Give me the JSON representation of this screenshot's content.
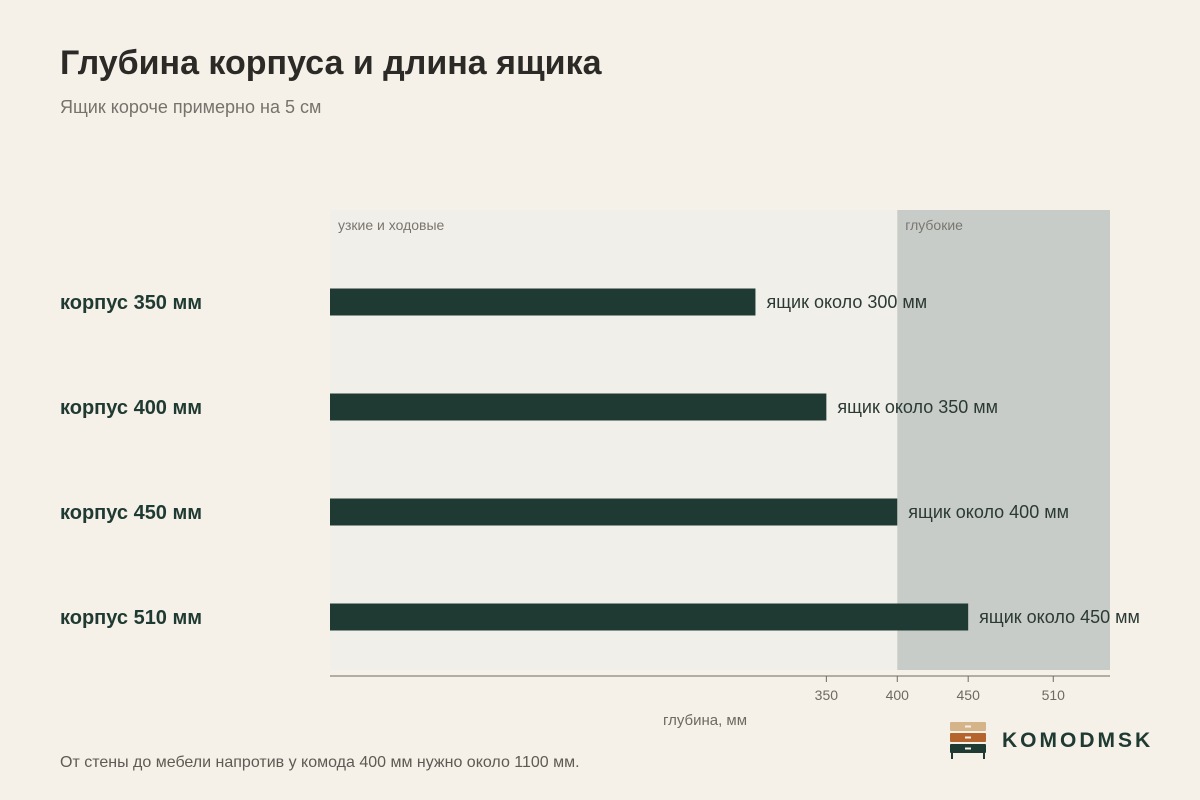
{
  "header": {
    "title": "Глубина корпуса и длина ящика",
    "subtitle": "Ящик короче примерно на 5 см"
  },
  "chart_data": {
    "type": "bar",
    "orientation": "horizontal",
    "categories": [
      "корпус 350 мм",
      "корпус 400 мм",
      "корпус 450 мм",
      "корпус 510 мм"
    ],
    "values": [
      300,
      350,
      400,
      450
    ],
    "data_labels": [
      "ящик около 300 мм",
      "ящик около 350 мм",
      "ящик около 400 мм",
      "ящик около 450 мм"
    ],
    "xlabel": "глубина, мм",
    "xticks": [
      350,
      400,
      450,
      510
    ],
    "xlim": [
      0,
      550
    ],
    "zones": [
      {
        "label": "узкие и ходовые",
        "from": 0,
        "to": 400
      },
      {
        "label": "глубокие",
        "from": 400,
        "to": 550
      }
    ],
    "colors": {
      "bar": "#1f3a32",
      "zone_narrow": "#f1efea",
      "zone_deep": "#c8ccc8"
    },
    "grid": false,
    "legend": "none"
  },
  "footer": {
    "note": "От стены до мебели напротив у комода 400 мм нужно около 1100 мм."
  },
  "brand": {
    "name": "KOMODMSK",
    "logo_icon": "chest-of-drawers-icon",
    "logo_colors": [
      "#d6b48a",
      "#b5652b",
      "#1f3a32"
    ]
  }
}
